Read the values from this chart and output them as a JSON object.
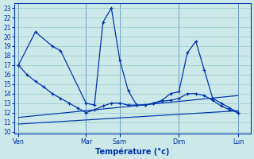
{
  "xlabel": "Température (°c)",
  "ylim": [
    9.8,
    23.5
  ],
  "yticks": [
    10,
    11,
    12,
    13,
    14,
    15,
    16,
    17,
    18,
    19,
    20,
    21,
    22,
    23
  ],
  "xlim": [
    0,
    28
  ],
  "background_color": "#cce8e8",
  "grid_color": "#99cccc",
  "line_color": "#0033aa",
  "day_labels": [
    "Ven",
    "Mar",
    "Sam",
    "Dim",
    "Lun"
  ],
  "day_positions": [
    0.5,
    8.5,
    12.5,
    19.5,
    26.5
  ],
  "vline_positions": [
    0.5,
    8.5,
    12.5,
    19.5,
    26.5
  ],
  "series": [
    {
      "x": [
        0.5,
        1.5,
        2.5,
        3.5,
        4.5,
        5.5,
        6.5,
        7.5,
        8.5,
        9.5,
        10.5,
        11.5,
        12.5,
        13.5,
        14.5,
        15.5,
        16.5,
        17.5,
        18.5,
        19.5,
        20.5,
        21.5,
        22.5,
        23.5,
        24.5,
        25.5,
        26.5
      ],
      "y": [
        17.0,
        16.0,
        15.3,
        14.7,
        14.0,
        13.5,
        13.0,
        12.5,
        12.0,
        12.3,
        12.7,
        13.0,
        13.0,
        12.8,
        12.8,
        12.8,
        13.0,
        13.2,
        13.3,
        13.5,
        14.0,
        14.0,
        13.8,
        13.3,
        12.7,
        12.3,
        12.0
      ],
      "marker": true
    },
    {
      "x": [
        0.5,
        2.5,
        4.5,
        5.5,
        8.5,
        9.5,
        10.5,
        11.5,
        12.5,
        13.5,
        14.5,
        15.5,
        16.5,
        17.5,
        18.5,
        19.5,
        20.5,
        21.5,
        22.5,
        23.5,
        24.5,
        25.5,
        26.5
      ],
      "y": [
        17.0,
        20.5,
        19.0,
        18.5,
        13.0,
        12.8,
        21.5,
        23.0,
        17.5,
        14.3,
        12.8,
        12.8,
        13.0,
        13.3,
        14.0,
        14.2,
        18.3,
        19.5,
        16.5,
        13.5,
        13.0,
        12.5,
        12.0
      ],
      "marker": true
    },
    {
      "x": [
        0.5,
        26.5
      ],
      "y": [
        11.5,
        13.8
      ],
      "marker": false
    },
    {
      "x": [
        0.5,
        26.5
      ],
      "y": [
        10.8,
        12.2
      ],
      "marker": false
    }
  ]
}
